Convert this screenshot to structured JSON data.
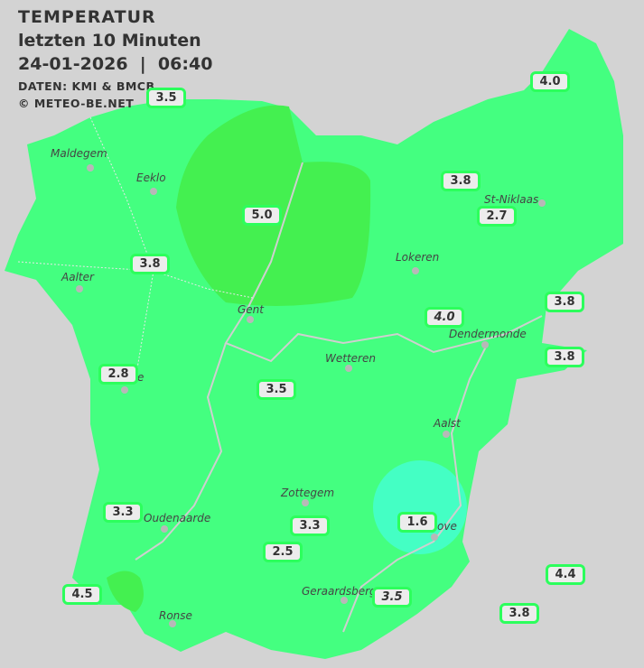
{
  "header": {
    "title": "TEMPERATUR",
    "subtitle": "letzten 10 Minuten",
    "datetime": "24-01-2026  |  06:40",
    "source": "DATEN: KMI & BMCB",
    "copyright": "© METEO-BE.NET"
  },
  "colors": {
    "background": "#d3d3d3",
    "base_fill": "#44ff80",
    "warm_fill": "#44f050",
    "cold_fill": "#44ffc4",
    "label_border": "#2cff5c"
  },
  "cities": [
    "Maldegem",
    "Eeklo",
    "St-Niklaas",
    "Lokeren",
    "Aalter",
    "Gent",
    "Dendermonde",
    "Wetteren",
    "e",
    "Aalst",
    "Zottegem",
    "Oudenaarde",
    "ove",
    "Geraardsberg",
    "Ronse"
  ],
  "readings": [
    {
      "value": "3.5",
      "italic": false
    },
    {
      "value": "4.0",
      "italic": false
    },
    {
      "value": "3.8",
      "italic": false
    },
    {
      "value": "2.7",
      "italic": false
    },
    {
      "value": "5.0",
      "italic": false
    },
    {
      "value": "3.8",
      "italic": false
    },
    {
      "value": "3.8",
      "italic": false
    },
    {
      "value": "4.0",
      "italic": true
    },
    {
      "value": "3.8",
      "italic": false
    },
    {
      "value": "2.8",
      "italic": false
    },
    {
      "value": "3.5",
      "italic": false
    },
    {
      "value": "3.3",
      "italic": false
    },
    {
      "value": "3.3",
      "italic": false
    },
    {
      "value": "1.6",
      "italic": false
    },
    {
      "value": "2.5",
      "italic": false
    },
    {
      "value": "4.4",
      "italic": false
    },
    {
      "value": "4.5",
      "italic": false
    },
    {
      "value": "3.5",
      "italic": true
    },
    {
      "value": "3.8",
      "italic": false
    }
  ]
}
